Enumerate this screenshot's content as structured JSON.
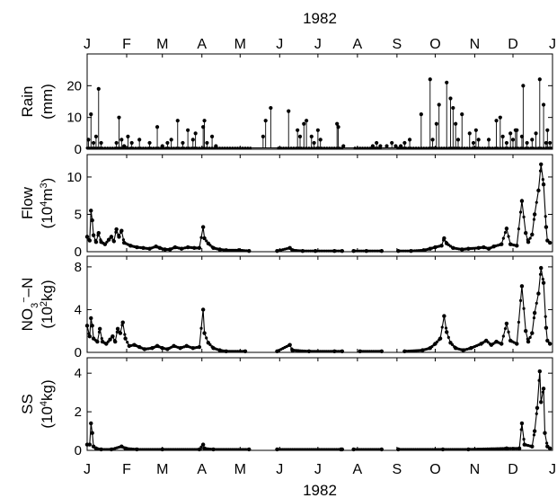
{
  "chart_data": {
    "type": "line",
    "top_label": "1982",
    "bottom_label": "1982",
    "months": [
      "J",
      "F",
      "M",
      "A",
      "M",
      "J",
      "J",
      "A",
      "S",
      "O",
      "N",
      "D",
      "J"
    ],
    "x_unit": "day of year 1982 (1 = 1 Jan)",
    "gaps": [
      [
        130,
        150
      ],
      [
        201,
        210
      ],
      [
        232,
        245
      ]
    ],
    "panels": [
      {
        "id": "rain",
        "ylabel_lines": [
          "Rain",
          "(mm)"
        ],
        "ylim": [
          0,
          30
        ],
        "yticks": [
          0,
          10,
          20
        ],
        "style": "stem",
        "baseline": 0.4,
        "points": [
          [
            2,
            3
          ],
          [
            4,
            11
          ],
          [
            6,
            2
          ],
          [
            8,
            4
          ],
          [
            10,
            19
          ],
          [
            12,
            2
          ],
          [
            24,
            2
          ],
          [
            26,
            10
          ],
          [
            28,
            3
          ],
          [
            30,
            1
          ],
          [
            33,
            4
          ],
          [
            36,
            2
          ],
          [
            42,
            3
          ],
          [
            50,
            2
          ],
          [
            56,
            7
          ],
          [
            60,
            1
          ],
          [
            64,
            2
          ],
          [
            67,
            3
          ],
          [
            72,
            9
          ],
          [
            76,
            2
          ],
          [
            80,
            6
          ],
          [
            84,
            3
          ],
          [
            86,
            5
          ],
          [
            92,
            7
          ],
          [
            93,
            9
          ],
          [
            95,
            2
          ],
          [
            99,
            4
          ],
          [
            102,
            1
          ],
          [
            139,
            4
          ],
          [
            141,
            9
          ],
          [
            145,
            13
          ],
          [
            159,
            12
          ],
          [
            166,
            6
          ],
          [
            168,
            4
          ],
          [
            171,
            8
          ],
          [
            173,
            9
          ],
          [
            177,
            4
          ],
          [
            179,
            2
          ],
          [
            182,
            6
          ],
          [
            184,
            3
          ],
          [
            197,
            8
          ],
          [
            198,
            7
          ],
          [
            202,
            1
          ],
          [
            225,
            1
          ],
          [
            228,
            2
          ],
          [
            231,
            1
          ],
          [
            236,
            1
          ],
          [
            240,
            2
          ],
          [
            243,
            1
          ],
          [
            247,
            1
          ],
          [
            250,
            2
          ],
          [
            254,
            3
          ],
          [
            263,
            11
          ],
          [
            270,
            22
          ],
          [
            272,
            3
          ],
          [
            275,
            8
          ],
          [
            277,
            14
          ],
          [
            283,
            21
          ],
          [
            286,
            16
          ],
          [
            288,
            13
          ],
          [
            290,
            8
          ],
          [
            292,
            3
          ],
          [
            295,
            11
          ],
          [
            301,
            5
          ],
          [
            304,
            2
          ],
          [
            306,
            6
          ],
          [
            308,
            3
          ],
          [
            316,
            3
          ],
          [
            322,
            9
          ],
          [
            325,
            10
          ],
          [
            327,
            4
          ],
          [
            330,
            2
          ],
          [
            333,
            5
          ],
          [
            335,
            3
          ],
          [
            337,
            6
          ],
          [
            338,
            6
          ],
          [
            342,
            4
          ],
          [
            343,
            20
          ],
          [
            346,
            2
          ],
          [
            350,
            3
          ],
          [
            353,
            5
          ],
          [
            356,
            22
          ],
          [
            359,
            14
          ],
          [
            361,
            2
          ],
          [
            362,
            6
          ],
          [
            364,
            2
          ]
        ]
      },
      {
        "id": "flow",
        "ylabel_lines": [
          "Flow",
          "(10^4 m^3)"
        ],
        "ylim": [
          0,
          13
        ],
        "yticks": [
          0,
          5,
          10
        ],
        "style": "line",
        "points": [
          [
            1,
            2
          ],
          [
            3,
            1.5
          ],
          [
            4,
            5.5
          ],
          [
            5,
            4.2
          ],
          [
            6,
            2.2
          ],
          [
            8,
            1.3
          ],
          [
            10,
            2.5
          ],
          [
            12,
            1.3
          ],
          [
            15,
            1
          ],
          [
            18,
            1.6
          ],
          [
            20,
            2
          ],
          [
            22,
            1.4
          ],
          [
            24,
            3
          ],
          [
            26,
            2
          ],
          [
            28,
            2.8
          ],
          [
            30,
            1.2
          ],
          [
            35,
            0.8
          ],
          [
            40,
            0.6
          ],
          [
            45,
            0.5
          ],
          [
            50,
            0.4
          ],
          [
            55,
            0.7
          ],
          [
            58,
            0.5
          ],
          [
            62,
            0.3
          ],
          [
            66,
            0.3
          ],
          [
            70,
            0.6
          ],
          [
            75,
            0.4
          ],
          [
            80,
            0.6
          ],
          [
            85,
            0.5
          ],
          [
            89,
            0.5
          ],
          [
            92,
            3.3
          ],
          [
            93,
            1.8
          ],
          [
            96,
            1.1
          ],
          [
            100,
            0.5
          ],
          [
            105,
            0.3
          ],
          [
            110,
            0.2
          ],
          [
            120,
            0.2
          ],
          [
            128,
            0.1
          ],
          [
            150,
            0.1
          ],
          [
            160,
            0.5
          ],
          [
            162,
            0.2
          ],
          [
            170,
            0.1
          ],
          [
            180,
            0.1
          ],
          [
            195,
            0.1
          ],
          [
            201,
            0.1
          ],
          [
            210,
            0.1
          ],
          [
            220,
            0.1
          ],
          [
            232,
            0.1
          ],
          [
            245,
            0.1
          ],
          [
            255,
            0.1
          ],
          [
            265,
            0.2
          ],
          [
            270,
            0.4
          ],
          [
            274,
            0.6
          ],
          [
            279,
            0.8
          ],
          [
            281,
            1.8
          ],
          [
            283,
            1.1
          ],
          [
            288,
            0.5
          ],
          [
            295,
            0.3
          ],
          [
            300,
            0.4
          ],
          [
            308,
            0.5
          ],
          [
            312,
            0.6
          ],
          [
            316,
            0.4
          ],
          [
            320,
            0.7
          ],
          [
            326,
            1
          ],
          [
            330,
            3.1
          ],
          [
            333,
            1
          ],
          [
            338,
            0.8
          ],
          [
            342,
            6.8
          ],
          [
            345,
            2.5
          ],
          [
            347,
            1.3
          ],
          [
            350,
            2.3
          ],
          [
            352,
            5
          ],
          [
            355,
            8.2
          ],
          [
            357,
            11.7
          ],
          [
            359,
            9
          ],
          [
            361,
            3.3
          ],
          [
            362,
            1.5
          ],
          [
            364,
            1.2
          ]
        ]
      },
      {
        "id": "nitrate",
        "ylabel_lines": [
          "NO3- -N",
          "(10^2 kg)"
        ],
        "ylim": [
          0,
          9
        ],
        "yticks": [
          0,
          4,
          8
        ],
        "style": "line",
        "points": [
          [
            1,
            2.5
          ],
          [
            3,
            1.5
          ],
          [
            4,
            3.2
          ],
          [
            5,
            2.5
          ],
          [
            6,
            1.3
          ],
          [
            9,
            1
          ],
          [
            11,
            2.2
          ],
          [
            13,
            1
          ],
          [
            16,
            0.8
          ],
          [
            19,
            1.2
          ],
          [
            21,
            1.5
          ],
          [
            23,
            1
          ],
          [
            25,
            2.2
          ],
          [
            27,
            1.8
          ],
          [
            29,
            2.8
          ],
          [
            31,
            1.3
          ],
          [
            34,
            0.6
          ],
          [
            38,
            0.7
          ],
          [
            42,
            0.5
          ],
          [
            46,
            0.3
          ],
          [
            52,
            0.4
          ],
          [
            56,
            0.6
          ],
          [
            60,
            0.4
          ],
          [
            64,
            0.3
          ],
          [
            69,
            0.6
          ],
          [
            74,
            0.4
          ],
          [
            79,
            0.6
          ],
          [
            84,
            0.4
          ],
          [
            89,
            0.5
          ],
          [
            92,
            4
          ],
          [
            93,
            1.8
          ],
          [
            96,
            0.9
          ],
          [
            100,
            0.4
          ],
          [
            105,
            0.2
          ],
          [
            110,
            0.1
          ],
          [
            125,
            0.1
          ],
          [
            150,
            0.1
          ],
          [
            160,
            0.7
          ],
          [
            162,
            0.2
          ],
          [
            175,
            0.1
          ],
          [
            195,
            0.1
          ],
          [
            201,
            0.1
          ],
          [
            215,
            0.1
          ],
          [
            232,
            0.1
          ],
          [
            250,
            0.1
          ],
          [
            264,
            0.2
          ],
          [
            270,
            0.4
          ],
          [
            274,
            0.8
          ],
          [
            278,
            1.3
          ],
          [
            281,
            3.4
          ],
          [
            283,
            1.9
          ],
          [
            286,
            0.9
          ],
          [
            290,
            0.4
          ],
          [
            296,
            0.2
          ],
          [
            302,
            0.4
          ],
          [
            310,
            0.8
          ],
          [
            314,
            1.1
          ],
          [
            318,
            0.7
          ],
          [
            322,
            1
          ],
          [
            326,
            0.8
          ],
          [
            330,
            2.7
          ],
          [
            333,
            1.1
          ],
          [
            338,
            0.8
          ],
          [
            342,
            6.2
          ],
          [
            345,
            2
          ],
          [
            347,
            1
          ],
          [
            350,
            1.8
          ],
          [
            352,
            3.7
          ],
          [
            355,
            5.5
          ],
          [
            357,
            7.9
          ],
          [
            359,
            6.5
          ],
          [
            361,
            2.3
          ],
          [
            362,
            1.1
          ],
          [
            364,
            0.8
          ]
        ]
      },
      {
        "id": "ss",
        "ylabel_lines": [
          "SS",
          "(10^4 kg)"
        ],
        "ylim": [
          0,
          4.8
        ],
        "yticks": [
          0,
          2,
          4
        ],
        "style": "line",
        "points": [
          [
            1,
            0.3
          ],
          [
            3,
            0.3
          ],
          [
            4,
            1.4
          ],
          [
            5,
            0.9
          ],
          [
            6,
            0.2
          ],
          [
            8,
            0.1
          ],
          [
            12,
            0.05
          ],
          [
            20,
            0.05
          ],
          [
            28,
            0.2
          ],
          [
            31,
            0.1
          ],
          [
            40,
            0.05
          ],
          [
            60,
            0.05
          ],
          [
            89,
            0.05
          ],
          [
            92,
            0.3
          ],
          [
            93,
            0.1
          ],
          [
            100,
            0.05
          ],
          [
            128,
            0.05
          ],
          [
            150,
            0.05
          ],
          [
            200,
            0.05
          ],
          [
            201,
            0.05
          ],
          [
            210,
            0.05
          ],
          [
            232,
            0.05
          ],
          [
            245,
            0.05
          ],
          [
            280,
            0.05
          ],
          [
            300,
            0.05
          ],
          [
            330,
            0.1
          ],
          [
            340,
            0.1
          ],
          [
            342,
            1.4
          ],
          [
            344,
            0.3
          ],
          [
            350,
            0.2
          ],
          [
            352,
            1
          ],
          [
            354,
            2.2
          ],
          [
            356,
            4.1
          ],
          [
            357,
            2.5
          ],
          [
            359,
            3.2
          ],
          [
            360,
            0.9
          ],
          [
            362,
            0.2
          ],
          [
            364,
            0.1
          ]
        ]
      }
    ]
  }
}
